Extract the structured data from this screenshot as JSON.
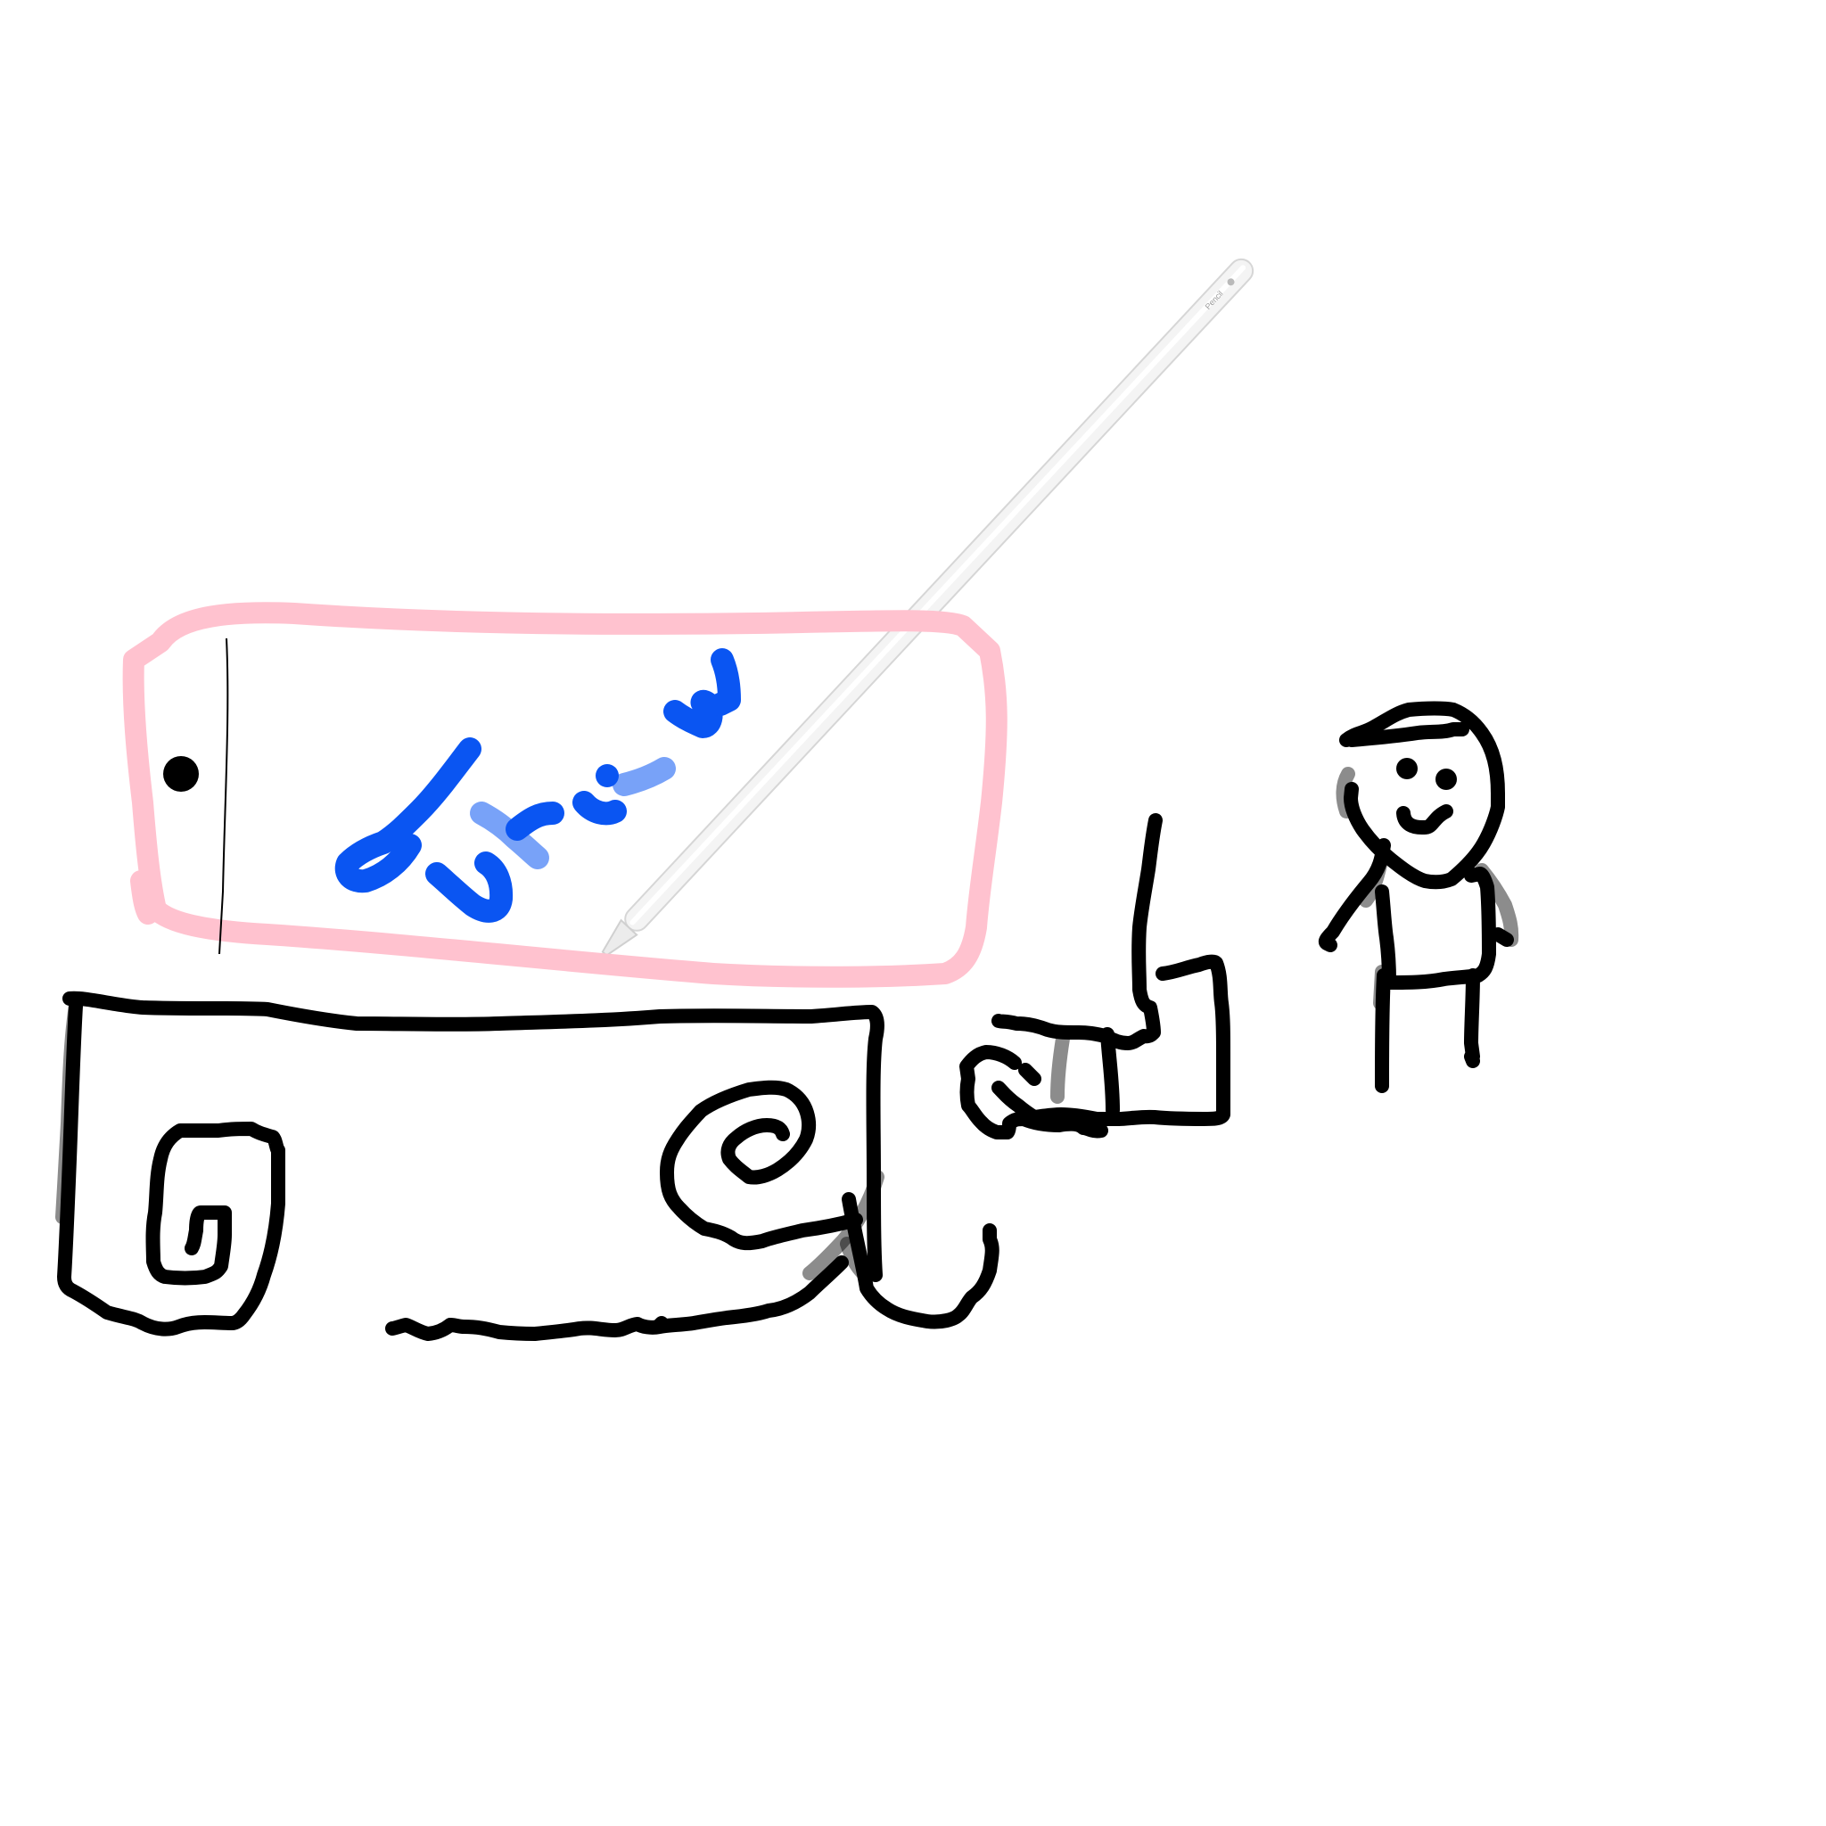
{
  "canvas": {
    "background": "#ffffff"
  },
  "colors": {
    "ink": "#000000",
    "tablet_outline": "#ffc2cf",
    "scribble": "#0a55f2",
    "pencil_body": "#f4f4f4",
    "pencil_edge": "#d6d6d6"
  },
  "pencil": {
    "brand_text": "Pencil",
    "icon": "apple-logo-icon"
  },
  "drawing": {
    "tablet": "tablet-sketch",
    "desk": "desk-sketch",
    "chair": "chair-sketch",
    "person": "stick-figure"
  }
}
